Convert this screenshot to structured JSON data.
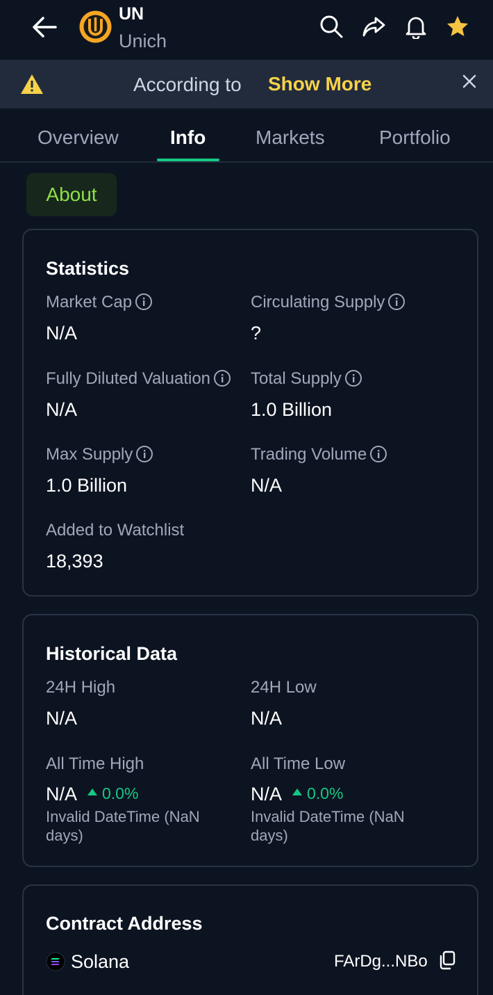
{
  "header": {
    "symbol": "UN",
    "name": "Unich",
    "icons": [
      "back-arrow-icon",
      "search-icon",
      "share-icon",
      "bell-icon",
      "star-icon"
    ]
  },
  "banner": {
    "text": "According to",
    "show_more": "Show More"
  },
  "tabs": [
    {
      "label": "Overview"
    },
    {
      "label": "Info"
    },
    {
      "label": "Markets"
    },
    {
      "label": "Portfolio"
    }
  ],
  "about_chip": "About",
  "statistics": {
    "title": "Statistics",
    "market_cap": {
      "label": "Market Cap",
      "value": "N/A"
    },
    "circulating_supply": {
      "label": "Circulating Supply",
      "value": "?"
    },
    "fdv": {
      "label": "Fully Diluted Valuation",
      "value": "N/A"
    },
    "total_supply": {
      "label": "Total Supply",
      "value": "1.0 Billion"
    },
    "max_supply": {
      "label": "Max Supply",
      "value": "1.0 Billion"
    },
    "trading_volume": {
      "label": "Trading Volume",
      "value": "N/A"
    },
    "watchlist": {
      "label": "Added to Watchlist",
      "value": "18,393"
    }
  },
  "historical": {
    "title": "Historical Data",
    "high_24h": {
      "label": "24H High",
      "value": "N/A"
    },
    "low_24h": {
      "label": "24H Low",
      "value": "N/A"
    },
    "ath": {
      "label": "All Time High",
      "value": "N/A",
      "change": "0.0%",
      "date": "Invalid DateTime (NaN days)"
    },
    "atl": {
      "label": "All Time Low",
      "value": "N/A",
      "change": "0.0%",
      "date": "Invalid DateTime (NaN days)"
    }
  },
  "contract": {
    "title": "Contract Address",
    "chain": "Solana",
    "address": "FArDg...NBo"
  },
  "colors": {
    "background": "#0d1421",
    "positive": "#16c784",
    "accent_yellow": "#f6d24a",
    "about_green": "#8ee048"
  }
}
